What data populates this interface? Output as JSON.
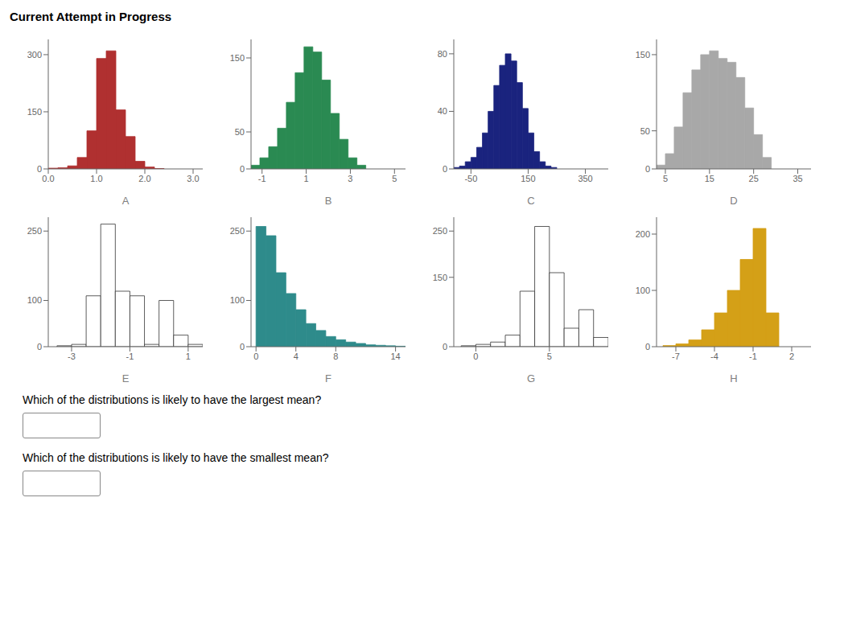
{
  "title": "Current Attempt in Progress",
  "annotations": [
    "Which of the distributions is likely to have the largest mean?",
    "Which of the distributions is likely to have the smallest mean?"
  ],
  "chart_data": [
    {
      "type": "histogram",
      "xlabel": "A",
      "color": "#b03030",
      "grid": false,
      "bins": [
        0.0,
        0.2,
        0.4,
        0.6,
        0.8,
        1.0,
        1.2,
        1.4,
        1.6,
        1.8,
        2.0,
        2.2,
        2.4
      ],
      "values": [
        2,
        3,
        8,
        30,
        100,
        290,
        310,
        155,
        85,
        20,
        5,
        1
      ],
      "xlim": [
        0.0,
        3.2
      ],
      "xticks": [
        {
          "value": 0,
          "label": "0.0"
        },
        {
          "value": 1,
          "label": "1.0"
        },
        {
          "value": 2,
          "label": "2.0"
        },
        {
          "value": 3,
          "label": "3.0"
        }
      ],
      "ylim": [
        0,
        340
      ],
      "yticks": [
        0,
        150,
        300
      ]
    },
    {
      "type": "histogram",
      "xlabel": "B",
      "color": "#2a8a52",
      "grid": false,
      "bins": [
        -1.5,
        -1.1,
        -0.7,
        -0.3,
        0.1,
        0.5,
        0.9,
        1.3,
        1.7,
        2.1,
        2.5,
        2.9,
        3.3,
        3.7
      ],
      "values": [
        5,
        15,
        30,
        55,
        90,
        130,
        165,
        158,
        120,
        75,
        40,
        15,
        5
      ],
      "xlim": [
        -1.5,
        5.5
      ],
      "xticks": [
        -1,
        1,
        3,
        5
      ],
      "ylim": [
        0,
        175
      ],
      "yticks": [
        0,
        50,
        150
      ]
    },
    {
      "type": "histogram",
      "xlabel": "C",
      "color": "#1a237e",
      "grid": false,
      "bins": [
        -110,
        -90,
        -70,
        -50,
        -30,
        -10,
        10,
        30,
        50,
        70,
        90,
        110,
        130,
        150,
        170,
        190,
        210,
        230,
        250
      ],
      "values": [
        1,
        2,
        5,
        8,
        15,
        25,
        40,
        58,
        72,
        80,
        75,
        60,
        42,
        25,
        12,
        5,
        2,
        1
      ],
      "xlim": [
        -110,
        430
      ],
      "xticks": [
        -50,
        150,
        350
      ],
      "ylim": [
        0,
        90
      ],
      "yticks": [
        0,
        40,
        80
      ]
    },
    {
      "type": "histogram",
      "xlabel": "D",
      "color": "#a8a8a8",
      "grid": false,
      "bins": [
        3,
        5,
        7,
        9,
        11,
        13,
        15,
        17,
        19,
        21,
        23,
        25,
        27,
        29
      ],
      "values": [
        5,
        20,
        55,
        100,
        130,
        150,
        155,
        145,
        140,
        120,
        80,
        45,
        15
      ],
      "xlim": [
        3,
        38
      ],
      "xticks": [
        5,
        15,
        25,
        35
      ],
      "ylim": [
        0,
        170
      ],
      "yticks": [
        0,
        50,
        150
      ]
    },
    {
      "type": "histogram",
      "xlabel": "E",
      "color": "#ffffff",
      "grid": false,
      "bins": [
        -3.5,
        -3.0,
        -2.5,
        -2.0,
        -1.5,
        -1.0,
        -0.5,
        0.0,
        0.5,
        1.0,
        1.5
      ],
      "values": [
        2,
        5,
        110,
        265,
        120,
        110,
        5,
        100,
        25,
        5
      ],
      "xlim": [
        -3.8,
        1.5
      ],
      "xticks": [
        -3,
        -1,
        1
      ],
      "ylim": [
        0,
        280
      ],
      "yticks": [
        0,
        100,
        250
      ]
    },
    {
      "type": "histogram",
      "xlabel": "F",
      "color": "#2e8b8b",
      "grid": false,
      "bins": [
        0,
        1,
        2,
        3,
        4,
        5,
        6,
        7,
        8,
        9,
        10,
        11,
        12,
        13,
        14,
        15
      ],
      "values": [
        260,
        240,
        160,
        115,
        80,
        50,
        35,
        22,
        15,
        10,
        7,
        4,
        3,
        2,
        1
      ],
      "xlim": [
        -0.5,
        15
      ],
      "xticks": [
        0,
        4,
        8,
        14
      ],
      "ylim": [
        0,
        280
      ],
      "yticks": [
        0,
        100,
        250
      ]
    },
    {
      "type": "histogram",
      "xlabel": "G",
      "color": "#ffffff",
      "grid": false,
      "bins": [
        -1,
        0,
        1,
        2,
        3,
        4,
        5,
        6,
        7,
        8,
        9
      ],
      "values": [
        2,
        5,
        10,
        25,
        120,
        260,
        160,
        40,
        80,
        20
      ],
      "xlim": [
        -1.5,
        9
      ],
      "xticks": [
        0,
        5
      ],
      "ylim": [
        0,
        280
      ],
      "yticks": [
        0,
        150,
        250
      ]
    },
    {
      "type": "histogram",
      "xlabel": "H",
      "color": "#d4a017",
      "grid": false,
      "bins": [
        -8,
        -7,
        -6,
        -5,
        -4,
        -3,
        -2,
        -1,
        0,
        1
      ],
      "values": [
        2,
        5,
        12,
        30,
        60,
        100,
        155,
        210,
        60
      ],
      "xlim": [
        -8.5,
        3.5
      ],
      "xticks": [
        -7,
        -4,
        -1,
        2
      ],
      "ylim": [
        0,
        230
      ],
      "yticks": [
        0,
        100,
        200
      ]
    }
  ]
}
